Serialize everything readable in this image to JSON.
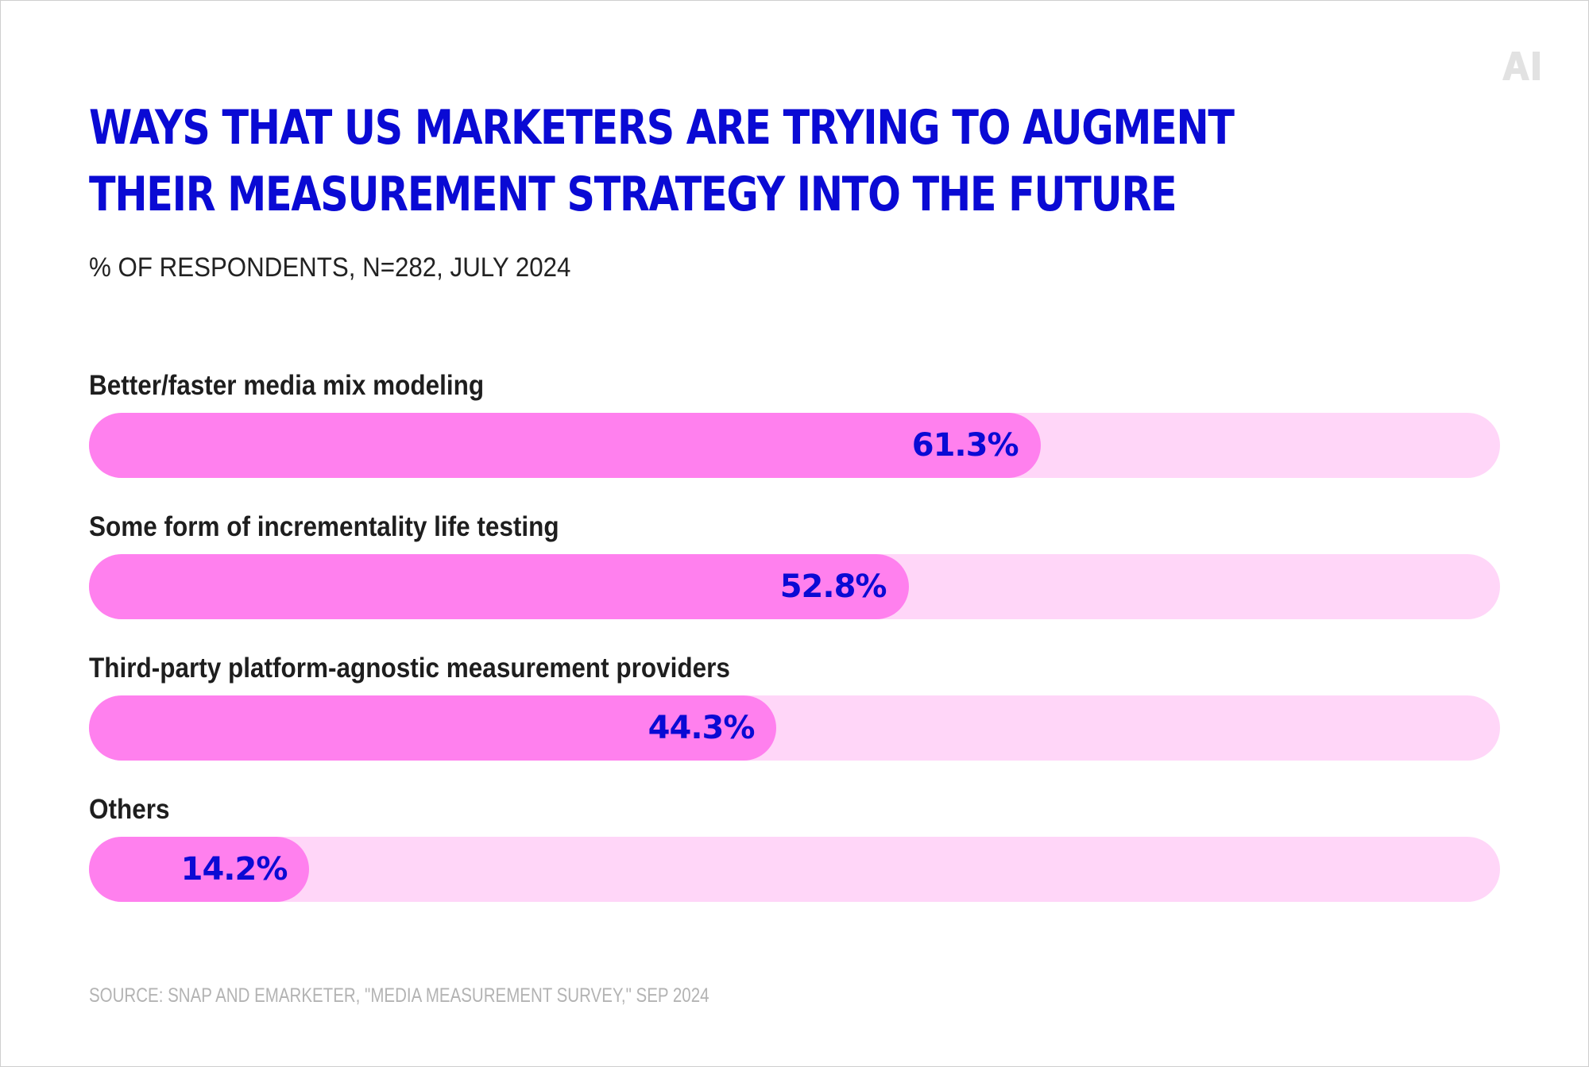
{
  "brand": {
    "logo_text": "AI",
    "logo_icon": "ai-logo-icon",
    "logo_color": "#e2e2e2"
  },
  "colors": {
    "title": "#0a0ad4",
    "bar_fill": "#ff80ee",
    "bar_track": "#ffd6f8",
    "value_text": "#0a0ad4",
    "label_text": "#1e1e1e",
    "source_text": "#b3b3b3"
  },
  "chart_data": {
    "type": "bar",
    "orientation": "horizontal",
    "title_lines": [
      "WAYS THAT US MARKETERS ARE TRYING TO AUGMENT",
      "THEIR MEASUREMENT STRATEGY INTO THE FUTURE"
    ],
    "subtitle": "% OF RESPONDENTS, N=282, JULY 2024",
    "categories": [
      "Better/faster media mix modeling",
      "Some form of incrementality life testing",
      "Third-party platform-agnostic measurement providers",
      "Others"
    ],
    "values": [
      61.3,
      52.8,
      44.3,
      14.2
    ],
    "value_labels": [
      "61.3%",
      "52.8%",
      "44.3%",
      "14.2%"
    ],
    "xlim": [
      0,
      100
    ],
    "grid": false,
    "legend": "none",
    "source": "SOURCE: SNAP AND EMARKETER, \"MEDIA MEASUREMENT SURVEY,\" SEP 2024"
  }
}
